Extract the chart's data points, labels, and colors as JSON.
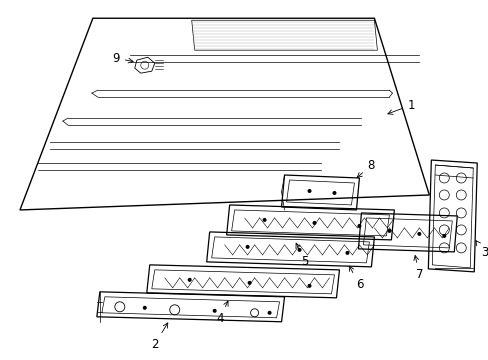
{
  "bg_color": "#ffffff",
  "line_color": "#000000",
  "lw_main": 0.9,
  "lw_inner": 0.5,
  "label_fontsize": 8.5,
  "arrow_lw": 0.6
}
